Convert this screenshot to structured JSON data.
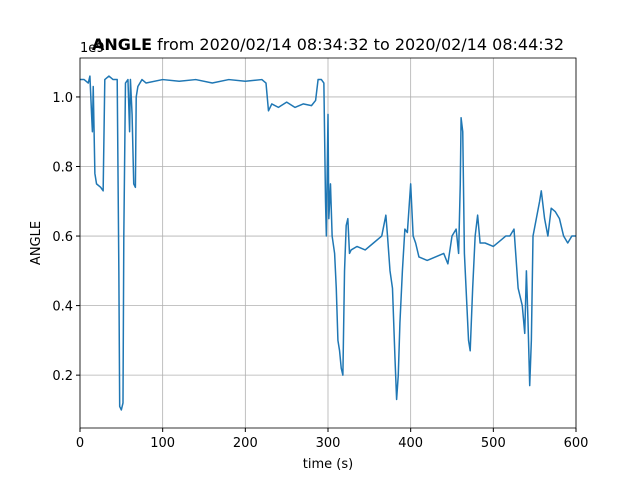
{
  "chart_data": {
    "type": "line",
    "title_bold": "ANGLE",
    "title": "from 2020/02/14 08:34:32 to 2020/02/14 08:44:32",
    "x_label": "time (s)",
    "y_label": "ANGLE",
    "y_offset_label": "1e9",
    "color": "#1f77b4",
    "grid": true,
    "xlim": [
      0,
      600
    ],
    "xticks": [
      0,
      100,
      200,
      300,
      400,
      500,
      600
    ],
    "ylim": [
      0.048,
      1.112
    ],
    "yticks": [
      0.2,
      0.4,
      0.6,
      0.8,
      {
        "value": 1.0,
        "label": "1.0"
      }
    ],
    "x": [
      0,
      5,
      10,
      12,
      14,
      15,
      16,
      18,
      20,
      25,
      28,
      30,
      35,
      40,
      45,
      47,
      48,
      50,
      52,
      53,
      55,
      58,
      60,
      61,
      63,
      65,
      67,
      68,
      70,
      75,
      80,
      100,
      120,
      140,
      160,
      180,
      200,
      220,
      225,
      228,
      232,
      240,
      250,
      260,
      270,
      280,
      285,
      288,
      292,
      295,
      297,
      298,
      300,
      301,
      303,
      305,
      308,
      310,
      312,
      314,
      316,
      318,
      320,
      322,
      324,
      326,
      328,
      335,
      345,
      355,
      365,
      370,
      372,
      375,
      378,
      381,
      383,
      385,
      387,
      390,
      393,
      396,
      398,
      400,
      403,
      406,
      410,
      420,
      430,
      440,
      445,
      450,
      455,
      458,
      460,
      461,
      463,
      465,
      467,
      470,
      472,
      475,
      478,
      481,
      484,
      490,
      500,
      510,
      515,
      520,
      525,
      530,
      535,
      538,
      540,
      542,
      544,
      546,
      548,
      552,
      556,
      558,
      562,
      566,
      570,
      575,
      580,
      585,
      590,
      595,
      600
    ],
    "values": [
      1.05,
      1.05,
      1.04,
      1.06,
      0.95,
      0.9,
      1.03,
      0.78,
      0.75,
      0.74,
      0.73,
      1.05,
      1.06,
      1.05,
      1.05,
      0.5,
      0.11,
      0.1,
      0.12,
      0.6,
      1.04,
      1.05,
      0.9,
      1.05,
      0.95,
      0.75,
      0.74,
      1.0,
      1.03,
      1.05,
      1.04,
      1.05,
      1.045,
      1.05,
      1.04,
      1.05,
      1.045,
      1.05,
      1.04,
      0.96,
      0.98,
      0.97,
      0.985,
      0.97,
      0.98,
      0.975,
      0.99,
      1.05,
      1.05,
      1.04,
      0.7,
      0.6,
      0.95,
      0.65,
      0.75,
      0.6,
      0.55,
      0.45,
      0.3,
      0.27,
      0.22,
      0.2,
      0.5,
      0.63,
      0.65,
      0.55,
      0.56,
      0.57,
      0.56,
      0.58,
      0.6,
      0.66,
      0.6,
      0.5,
      0.45,
      0.25,
      0.13,
      0.2,
      0.35,
      0.5,
      0.62,
      0.61,
      0.68,
      0.75,
      0.6,
      0.58,
      0.54,
      0.53,
      0.54,
      0.55,
      0.52,
      0.6,
      0.62,
      0.55,
      0.75,
      0.94,
      0.9,
      0.55,
      0.45,
      0.3,
      0.27,
      0.45,
      0.6,
      0.66,
      0.58,
      0.58,
      0.57,
      0.59,
      0.6,
      0.6,
      0.62,
      0.45,
      0.4,
      0.32,
      0.5,
      0.35,
      0.17,
      0.3,
      0.6,
      0.65,
      0.7,
      0.73,
      0.65,
      0.6,
      0.68,
      0.67,
      0.65,
      0.6,
      0.58,
      0.6,
      0.6
    ]
  }
}
